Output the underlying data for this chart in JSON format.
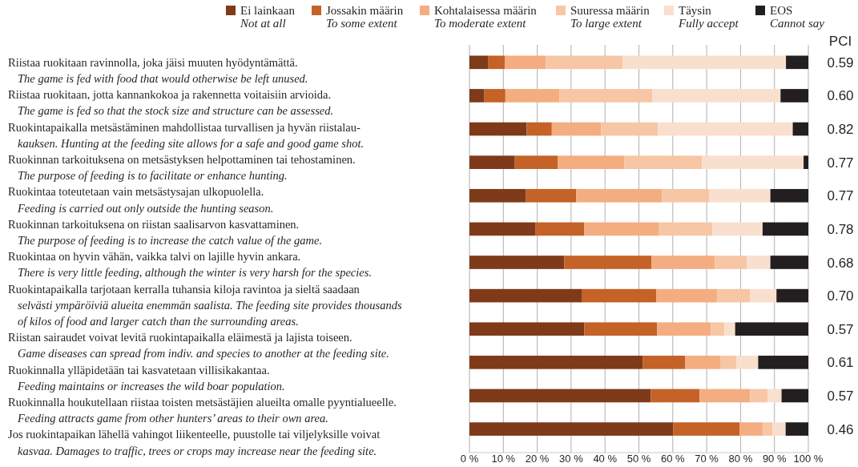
{
  "chart_data": {
    "type": "bar",
    "orientation": "horizontal",
    "stacked": true,
    "categories": [
      "Riistaa ruokitaan ravinnolla, joka jäisi muuten hyödyntämättä.\nThe game is fed with food that would otherwise be left unused.",
      "Riistaa ruokitaan, jotta kannankokoa ja rakennetta voitaisiin arvioida.\nThe game is fed so that the stock size and structure can be assessed.",
      "Ruokintapaikalla metsästäminen mahdollistaa turvallisen ja hyvän riistalau-\nkauksen. Hunting at the feeding site allows for a safe and good game shot.",
      "Ruokinnan tarkoituksena on metsästyksen helpottaminen tai tehostaminen.\nThe purpose of feeding is to facilitate or enhance hunting.",
      "Ruokintaa toteutetaan vain metsästysajan ulkopuolella.\nFeeding is carried out only outside the hunting season.",
      "Ruokinnan tarkoituksena on riistan saalisarvon kasvattaminen.\nThe purpose of feeding is to increase the catch value of the game.",
      "Ruokintaa on hyvin vähän, vaikka talvi on lajille hyvin ankara.\nThere is very little feeding, although the winter is very harsh for the species.",
      "Ruokintapaikalla tarjotaan kerralla tuhansia kiloja ravintoa ja sieltä saadaan\nselvästi ympäröiviä alueita enemmän saalista. The feeding site provides thousands\nof kilos of food and larger catch than the surrounding areas.",
      "Riistan sairaudet voivat levitä ruokintapaikalla eläimestä ja lajista toiseen.\nGame diseases can spread from indiv. and species to another at the feeding site.",
      "Ruokinnalla ylläpidetään tai kasvatetaan villisikakantaa.\nFeeding maintains or increases the wild boar population.",
      "Ruokinnalla houkutellaan riistaa toisten metsästäjien alueilta omalle pyyntialueelle.\nFeeding attracts game from other hunters’ areas to their own area.",
      "Jos ruokintapaikan lähellä vahingot liikenteelle, puustolle tai viljelyksille voivat\nkasvaa. Damages to traffic, trees or crops may increase near the feeding site."
    ],
    "series": [
      {
        "name": "Ei lainkaan\nNot at all",
        "color": "#7f3a19",
        "values": [
          5.6,
          4.4,
          16.9,
          13.4,
          16.7,
          19.4,
          28.0,
          33.1,
          33.9,
          51.1,
          53.5,
          60.1
        ]
      },
      {
        "name": "Jossakin määrin\nTo some extent",
        "color": "#c46227",
        "values": [
          4.9,
          6.2,
          7.4,
          12.6,
          14.8,
          14.5,
          25.7,
          22.0,
          21.5,
          12.5,
          14.4,
          19.6
        ]
      },
      {
        "name": "Kohtalaisessa määrin\nTo moderate extent",
        "color": "#f4ad80",
        "values": [
          12.1,
          16.0,
          14.6,
          19.7,
          25.3,
          21.9,
          18.7,
          18.0,
          15.8,
          10.4,
          14.9,
          6.8
        ]
      },
      {
        "name": "Suuressa määrin\nTo large extent",
        "color": "#f7c6a5",
        "values": [
          22.6,
          27.4,
          16.7,
          22.9,
          13.9,
          15.9,
          9.4,
          9.7,
          4.0,
          4.7,
          5.2,
          2.9
        ]
      },
      {
        "name": "Täysin\nFully accept",
        "color": "#f9dfce",
        "values": [
          48.2,
          37.8,
          39.8,
          30.0,
          18.1,
          14.8,
          7.0,
          7.8,
          3.2,
          6.5,
          4.1,
          3.9
        ]
      },
      {
        "name": "EOS\nCannot say",
        "color": "#231f20",
        "values": [
          6.6,
          8.2,
          4.6,
          1.4,
          11.2,
          13.5,
          11.2,
          9.4,
          21.6,
          14.8,
          7.9,
          6.7
        ]
      }
    ],
    "xlim": [
      0,
      100
    ],
    "xticks": [
      {
        "value": 0,
        "label": "0 %"
      },
      {
        "value": 10,
        "label": "10 %"
      },
      {
        "value": 20,
        "label": "20 %"
      },
      {
        "value": 30,
        "label": "30 %"
      },
      {
        "value": 40,
        "label": "40 %"
      },
      {
        "value": 50,
        "label": "50 %"
      },
      {
        "value": 60,
        "label": "60 %"
      },
      {
        "value": 70,
        "label": "70 %"
      },
      {
        "value": 80,
        "label": "80 %"
      },
      {
        "value": 90,
        "label": "90 %"
      },
      {
        "value": 100,
        "label": "100 %"
      }
    ],
    "grid": "x",
    "legend": "top",
    "annotations": [
      "PCI",
      "0.59",
      "0.60",
      "0.82",
      "0.77",
      "0.77",
      "0.78",
      "0.68",
      "0.70",
      "0.57",
      "0.61",
      "0.57",
      "0.46"
    ]
  }
}
